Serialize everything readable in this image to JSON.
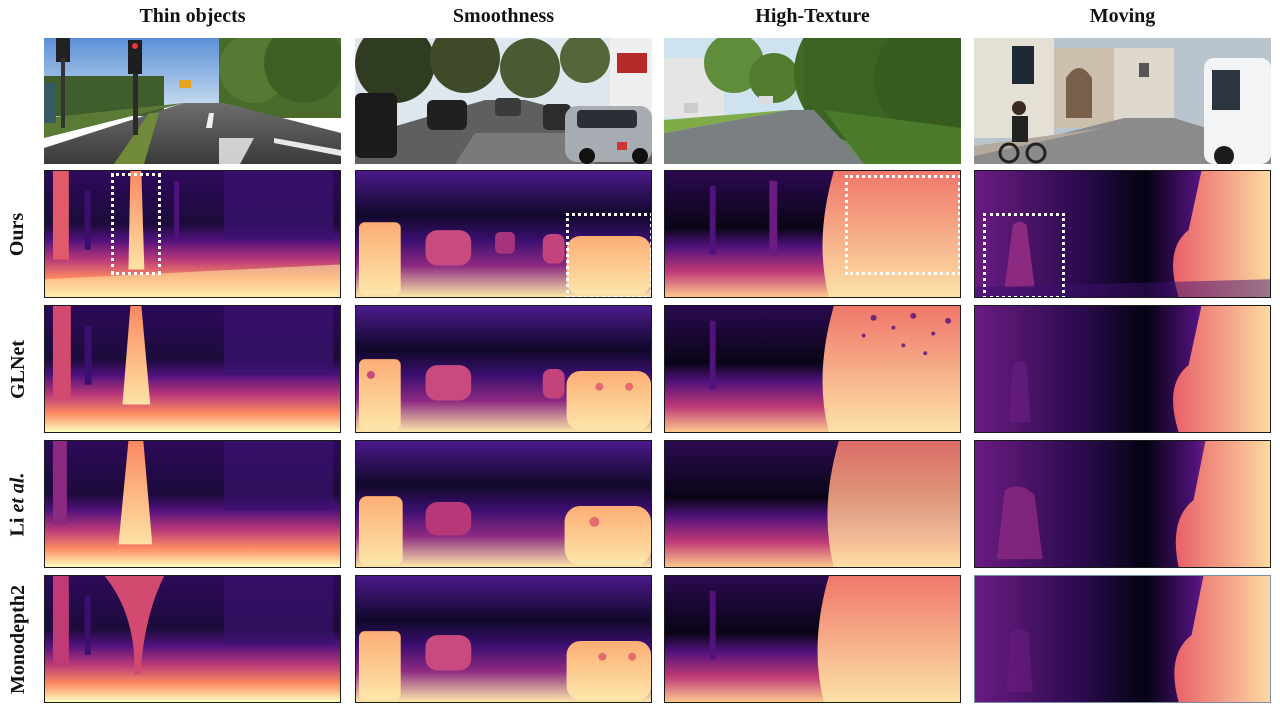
{
  "columns": [
    {
      "key": "thin",
      "label": "Thin objects"
    },
    {
      "key": "smooth",
      "label": "Smoothness"
    },
    {
      "key": "texture",
      "label": "High-Texture"
    },
    {
      "key": "moving",
      "label": "Moving"
    }
  ],
  "rows": [
    {
      "key": "input",
      "label": ""
    },
    {
      "key": "ours",
      "label": "Ours"
    },
    {
      "key": "glnet",
      "label": "GLNet"
    },
    {
      "key": "li",
      "label": "Li",
      "label_italic": "et al."
    },
    {
      "key": "monodepth2",
      "label": "Monodepth2"
    }
  ],
  "colormap": "magma",
  "colors": {
    "near": "#fcfdbf",
    "mid_near": "#fc8961",
    "mid": "#b73779",
    "mid_far": "#51127c",
    "far": "#000004",
    "highlight_box": "#ffffff"
  }
}
